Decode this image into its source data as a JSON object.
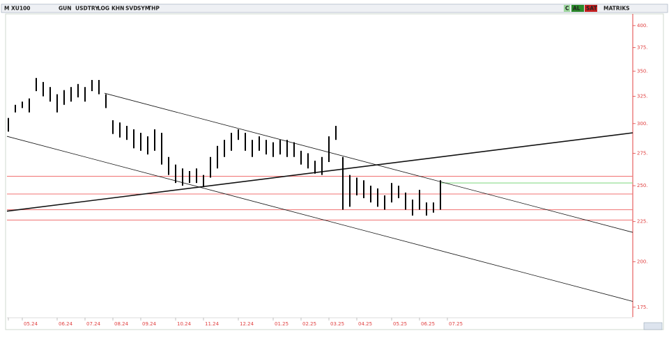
{
  "toolbar": {
    "left": [
      "M",
      "XU100",
      "GUN",
      "USDTRY",
      "LOG",
      "KHN",
      "SVD",
      "SYM",
      "THP"
    ],
    "right": [
      "C",
      "AL",
      "SAT",
      "MATRIKS"
    ]
  },
  "chart_data": {
    "type": "range",
    "categories": [
      "",
      null,
      "05.24",
      null,
      null,
      null,
      null,
      "06.24",
      null,
      null,
      null,
      "07.24",
      null,
      null,
      null,
      "08.24",
      null,
      null,
      null,
      "09.24",
      null,
      null,
      null,
      null,
      "10.24",
      null,
      null,
      null,
      "11.24",
      null,
      null,
      null,
      null,
      "12.24",
      null,
      null,
      null,
      null,
      "01.25",
      null,
      null,
      null,
      "02.25",
      null,
      null,
      null,
      "03.25",
      null,
      null,
      null,
      "04.25",
      null,
      null,
      null,
      null,
      "05.25",
      null,
      null,
      null,
      "06.25",
      null,
      null,
      null,
      "07.25"
    ],
    "high": [
      305,
      317,
      320,
      323,
      343,
      339,
      334,
      327,
      331,
      334,
      337,
      334,
      341,
      341,
      327,
      303,
      301,
      298,
      295,
      292,
      289,
      295,
      292,
      272,
      266,
      263,
      261,
      263,
      258,
      272,
      281,
      286,
      292,
      295,
      292,
      286,
      289,
      286,
      284,
      286,
      286,
      284,
      277,
      275,
      269,
      272,
      289,
      298,
      272,
      258,
      256,
      254,
      250,
      248,
      243,
      252,
      250,
      245,
      240,
      247,
      238,
      238,
      254,
      null
    ],
    "low": [
      293,
      310,
      314,
      310,
      330,
      325,
      320,
      310,
      317,
      320,
      324,
      320,
      330,
      327,
      314,
      291,
      288,
      286,
      279,
      277,
      274,
      277,
      266,
      258,
      252,
      250,
      252,
      252,
      249,
      256,
      263,
      272,
      277,
      286,
      277,
      272,
      277,
      274,
      272,
      274,
      272,
      272,
      266,
      263,
      259,
      258,
      268,
      286,
      233,
      235,
      243,
      241,
      238,
      235,
      233,
      238,
      241,
      233,
      229,
      233,
      229,
      231,
      233,
      null
    ],
    "color": "#000000",
    "xlim": [
      -0.2,
      89.6
    ],
    "log_y": true,
    "ylim": [
      170,
      414
    ],
    "yticks": [
      {
        "value": 175,
        "label": "175."
      },
      {
        "value": 200,
        "label": "200."
      },
      {
        "value": 225,
        "label": "225."
      },
      {
        "value": 250,
        "label": "250."
      },
      {
        "value": 275,
        "label": "275."
      },
      {
        "value": 300,
        "label": "300."
      },
      {
        "value": 325,
        "label": "325."
      },
      {
        "value": 350,
        "label": "350."
      },
      {
        "value": 375,
        "label": "375."
      },
      {
        "value": 400,
        "label": "400."
      }
    ],
    "hlines": [
      257,
      244,
      233,
      226
    ],
    "hline_color": "#f07070",
    "last_line": 252,
    "last_color": "#7ad67a",
    "trend_lines": [
      {
        "x": [
          13.8,
          89.6
        ],
        "y": [
          328,
          218
        ],
        "width": 0.8
      },
      {
        "x": [
          -0.2,
          89.6
        ],
        "y": [
          289,
          178
        ],
        "width": 0.8
      },
      {
        "x": [
          -0.2,
          89.6
        ],
        "y": [
          232,
          292
        ],
        "width": 1.6
      }
    ]
  }
}
